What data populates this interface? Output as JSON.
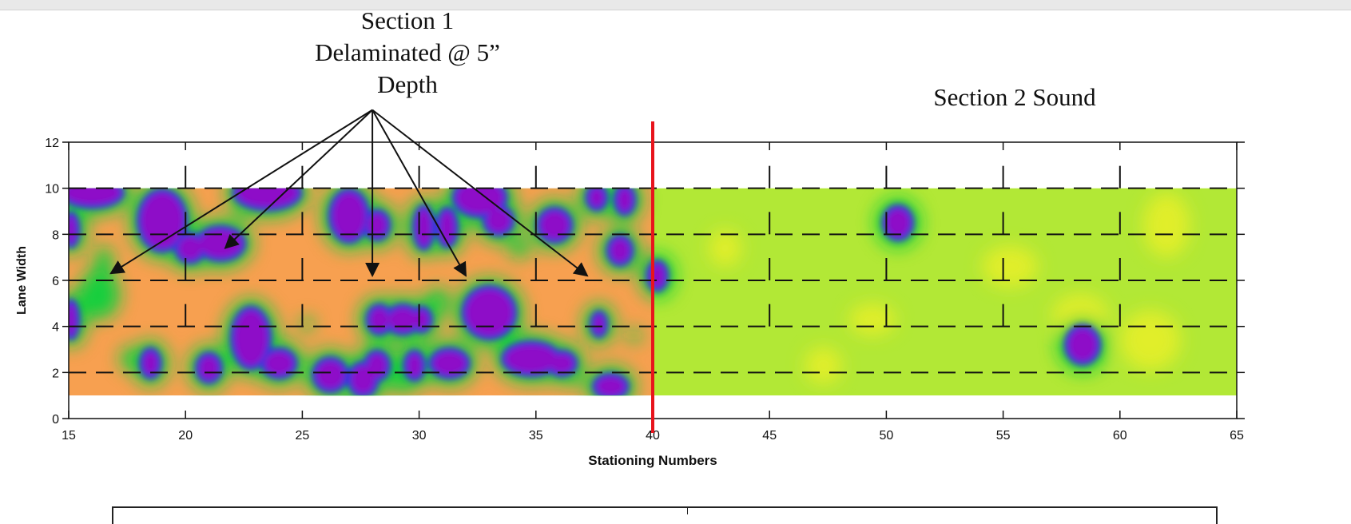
{
  "chart_data": {
    "type": "heatmap",
    "xlabel": "Stationing Numbers",
    "ylabel": "Lane Width",
    "xlim": [
      15,
      65
    ],
    "ylim": [
      0,
      12
    ],
    "x_ticks": [
      15,
      20,
      25,
      30,
      35,
      40,
      45,
      50,
      55,
      60,
      65
    ],
    "y_ticks": [
      0,
      2,
      4,
      6,
      8,
      10,
      12
    ],
    "grid": "dashed corner markers",
    "heatmap_extent": {
      "x": [
        15,
        65
      ],
      "y": [
        1,
        10
      ]
    },
    "section_boundary_station": 40,
    "colors": {
      "section1_background": "#f7a050",
      "section2_background": "#b2e836",
      "delamination_core": "#8e11c8",
      "delamination_ring": "#2a36e0",
      "transition": "#18cf3c",
      "sound_yellow": "#e6ee2a",
      "boundary_line": "#e8141c"
    },
    "annotations": [
      {
        "lines": [
          "Section 1",
          "Delaminated @ 5”",
          "Depth"
        ],
        "arrow_source": [
          28,
          13.4
        ],
        "arrow_targets": [
          [
            16.8,
            6.3
          ],
          [
            21.7,
            7.4
          ],
          [
            28,
            6.2
          ],
          [
            32,
            6.2
          ],
          [
            37.2,
            6.2
          ]
        ]
      },
      {
        "lines": [
          "Section 2 Sound"
        ]
      }
    ],
    "delaminated_spots": [
      [
        16,
        9.8,
        1.2,
        0.5
      ],
      [
        19,
        8.6,
        0.9,
        1.2
      ],
      [
        20.2,
        7.4,
        0.5,
        0.5
      ],
      [
        21.5,
        7.6,
        0.9,
        0.6
      ],
      [
        23.5,
        9.8,
        1.3,
        0.6
      ],
      [
        27,
        8.8,
        0.7,
        1.0
      ],
      [
        28.2,
        8.4,
        0.4,
        0.5
      ],
      [
        30.2,
        8.3,
        0.3,
        0.8
      ],
      [
        31.2,
        8.3,
        0.3,
        0.7
      ],
      [
        32.6,
        9.6,
        1.0,
        0.7
      ],
      [
        33.4,
        8.6,
        0.5,
        0.5
      ],
      [
        35.8,
        8.4,
        0.6,
        0.6
      ],
      [
        37.6,
        9.6,
        0.3,
        0.4
      ],
      [
        38.8,
        9.5,
        0.3,
        0.5
      ],
      [
        38.6,
        7.3,
        0.4,
        0.5
      ],
      [
        40.2,
        6.2,
        0.3,
        0.5
      ],
      [
        15.1,
        8.2,
        0.2,
        0.6
      ],
      [
        15.1,
        4.3,
        0.2,
        0.7
      ],
      [
        22.8,
        3.5,
        0.7,
        1.2
      ],
      [
        21,
        2.2,
        0.4,
        0.5
      ],
      [
        24,
        2.4,
        0.6,
        0.5
      ],
      [
        26.2,
        1.9,
        0.6,
        0.6
      ],
      [
        27.6,
        1.7,
        0.5,
        0.6
      ],
      [
        28.3,
        4.3,
        0.4,
        0.5
      ],
      [
        29.3,
        4.3,
        0.6,
        0.5
      ],
      [
        30.1,
        4.3,
        0.3,
        0.4
      ],
      [
        28.2,
        2.3,
        0.4,
        0.5
      ],
      [
        29.8,
        2.3,
        0.3,
        0.5
      ],
      [
        31.3,
        2.4,
        0.7,
        0.5
      ],
      [
        33,
        4.6,
        1.0,
        1.0
      ],
      [
        34.8,
        2.6,
        1.1,
        0.6
      ],
      [
        36.1,
        2.4,
        0.5,
        0.4
      ],
      [
        38.2,
        1.4,
        0.6,
        0.4
      ],
      [
        37.7,
        4.1,
        0.2,
        0.4
      ],
      [
        18.5,
        2.4,
        0.3,
        0.5
      ],
      [
        50.5,
        8.5,
        0.5,
        0.6
      ],
      [
        58.4,
        3.2,
        0.6,
        0.7
      ]
    ],
    "transition_spots": [
      [
        16.3,
        5.4,
        0.9,
        1.1
      ],
      [
        16.5,
        6.8,
        0.4,
        0.7
      ],
      [
        17.6,
        2.6,
        0.4,
        0.5
      ],
      [
        29.3,
        1.5,
        0.6,
        0.4
      ],
      [
        30.8,
        5.1,
        0.5,
        0.6
      ],
      [
        34.3,
        7.4,
        0.5,
        0.4
      ],
      [
        25.2,
        4.1,
        0.3,
        0.3
      ],
      [
        36.6,
        1.7,
        0.4,
        0.3
      ],
      [
        22.4,
        9.0,
        0.3,
        0.3
      ],
      [
        39.2,
        3.6,
        0.3,
        0.3
      ]
    ],
    "sound_yellow_zones": [
      [
        47.3,
        2.3,
        0.8,
        0.8
      ],
      [
        58.3,
        4.5,
        1.2,
        0.9
      ],
      [
        61.3,
        3.4,
        1.3,
        1.3
      ],
      [
        62,
        8.4,
        1.0,
        1.4
      ],
      [
        49.4,
        4.3,
        1.0,
        0.7
      ],
      [
        55.3,
        6.6,
        1.2,
        0.9
      ],
      [
        43.1,
        7.4,
        0.7,
        0.8
      ]
    ]
  }
}
